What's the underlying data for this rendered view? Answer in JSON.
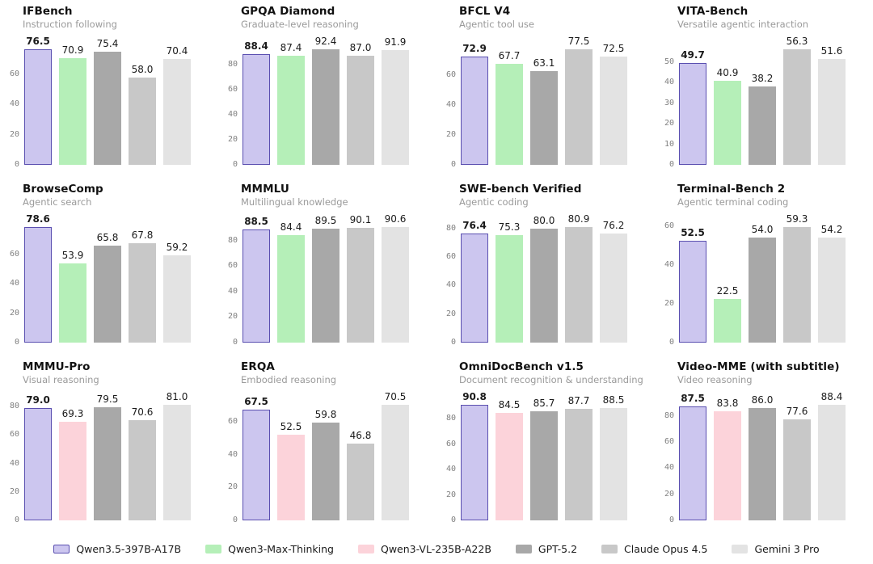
{
  "page": {
    "background": "#ffffff"
  },
  "colors": {
    "Qwen3.5-397B-A17B": {
      "fill": "#ccc6ef",
      "edge": "#5a4fb0"
    },
    "Qwen3-Max-Thinking": {
      "fill": "#b5efb8",
      "edge": "#b5efb8"
    },
    "Qwen3-VL-235B-A22B": {
      "fill": "#fcd3da",
      "edge": "#fcd3da"
    },
    "GPT-5.2": {
      "fill": "#a8a8a8",
      "edge": "#a8a8a8"
    },
    "Claude Opus 4.5": {
      "fill": "#c8c8c8",
      "edge": "#c8c8c8"
    },
    "Gemini 3 Pro": {
      "fill": "#e3e3e3",
      "edge": "#e3e3e3"
    }
  },
  "legend": {
    "items": [
      "Qwen3.5-397B-A17B",
      "Qwen3-Max-Thinking",
      "Qwen3-VL-235B-A22B",
      "GPT-5.2",
      "Claude Opus 4.5",
      "Gemini 3 Pro"
    ]
  },
  "chart_data": [
    {
      "type": "bar",
      "title": "IFBench",
      "subtitle": "Instruction following",
      "categories": [
        "Qwen3.5-397B-A17B",
        "Qwen3-Max-Thinking",
        "GPT-5.2",
        "Claude Opus 4.5",
        "Gemini 3 Pro"
      ],
      "values": [
        76.5,
        70.9,
        75.4,
        58.0,
        70.4
      ],
      "yticks": [
        0,
        20,
        40,
        60
      ],
      "ylim": [
        0,
        80.5
      ]
    },
    {
      "type": "bar",
      "title": "GPQA Diamond",
      "subtitle": "Graduate-level reasoning",
      "categories": [
        "Qwen3.5-397B-A17B",
        "Qwen3-Max-Thinking",
        "GPT-5.2",
        "Claude Opus 4.5",
        "Gemini 3 Pro"
      ],
      "values": [
        88.4,
        87.4,
        92.4,
        87.0,
        91.9
      ],
      "yticks": [
        0,
        20,
        40,
        60,
        80
      ],
      "ylim": [
        0,
        97.0
      ]
    },
    {
      "type": "bar",
      "title": "BFCL V4",
      "subtitle": "Agentic tool use",
      "categories": [
        "Qwen3.5-397B-A17B",
        "Qwen3-Max-Thinking",
        "GPT-5.2",
        "Claude Opus 4.5",
        "Gemini 3 Pro"
      ],
      "values": [
        72.9,
        67.7,
        63.1,
        77.5,
        72.5
      ],
      "yticks": [
        0,
        20,
        40,
        60
      ],
      "ylim": [
        0,
        81.4
      ]
    },
    {
      "type": "bar",
      "title": "VITA-Bench",
      "subtitle": "Versatile agentic interaction",
      "categories": [
        "Qwen3.5-397B-A17B",
        "Qwen3-Max-Thinking",
        "GPT-5.2",
        "Claude Opus 4.5",
        "Gemini 3 Pro"
      ],
      "values": [
        49.7,
        40.9,
        38.2,
        56.3,
        51.6
      ],
      "yticks": [
        0,
        10,
        20,
        30,
        40,
        50
      ],
      "ylim": [
        0,
        59.1
      ]
    },
    {
      "type": "bar",
      "title": "BrowseComp",
      "subtitle": "Agentic search",
      "categories": [
        "Qwen3.5-397B-A17B",
        "Qwen3-Max-Thinking",
        "GPT-5.2",
        "Claude Opus 4.5",
        "Gemini 3 Pro"
      ],
      "values": [
        78.6,
        53.9,
        65.8,
        67.8,
        59.2
      ],
      "yticks": [
        0,
        20,
        40,
        60
      ],
      "ylim": [
        0,
        82.5
      ]
    },
    {
      "type": "bar",
      "title": "MMMLU",
      "subtitle": "Multilingual knowledge",
      "categories": [
        "Qwen3.5-397B-A17B",
        "Qwen3-Max-Thinking",
        "GPT-5.2",
        "Claude Opus 4.5",
        "Gemini 3 Pro"
      ],
      "values": [
        88.5,
        84.4,
        89.5,
        90.1,
        90.6
      ],
      "yticks": [
        0,
        20,
        40,
        60,
        80
      ],
      "ylim": [
        0,
        95.1
      ]
    },
    {
      "type": "bar",
      "title": "SWE-bench Verified",
      "subtitle": "Agentic coding",
      "categories": [
        "Qwen3.5-397B-A17B",
        "Qwen3-Max-Thinking",
        "GPT-5.2",
        "Claude Opus 4.5",
        "Gemini 3 Pro"
      ],
      "values": [
        76.4,
        75.3,
        80.0,
        80.9,
        76.2
      ],
      "yticks": [
        0,
        20,
        40,
        60,
        80
      ],
      "ylim": [
        0,
        84.9
      ]
    },
    {
      "type": "bar",
      "title": "Terminal-Bench 2",
      "subtitle": "Agentic terminal coding",
      "categories": [
        "Qwen3.5-397B-A17B",
        "Qwen3-Max-Thinking",
        "GPT-5.2",
        "Claude Opus 4.5",
        "Gemini 3 Pro"
      ],
      "values": [
        52.5,
        22.5,
        54.0,
        59.3,
        54.2
      ],
      "yticks": [
        0,
        20,
        40,
        60
      ],
      "ylim": [
        0,
        62.3
      ]
    },
    {
      "type": "bar",
      "title": "MMMU-Pro",
      "subtitle": "Visual reasoning",
      "categories": [
        "Qwen3.5-397B-A17B",
        "Qwen3-VL-235B-A22B",
        "GPT-5.2",
        "Claude Opus 4.5",
        "Gemini 3 Pro"
      ],
      "values": [
        79.0,
        69.3,
        79.5,
        70.6,
        81.0
      ],
      "yticks": [
        0,
        20,
        40,
        60,
        80
      ],
      "ylim": [
        0,
        85.1
      ]
    },
    {
      "type": "bar",
      "title": "ERQA",
      "subtitle": "Embodied reasoning",
      "categories": [
        "Qwen3.5-397B-A17B",
        "Qwen3-VL-235B-A22B",
        "GPT-5.2",
        "Claude Opus 4.5",
        "Gemini 3 Pro"
      ],
      "values": [
        67.5,
        52.5,
        59.8,
        46.8,
        70.5
      ],
      "yticks": [
        0,
        20,
        40,
        60
      ],
      "ylim": [
        0,
        74.0
      ]
    },
    {
      "type": "bar",
      "title": "OmniDocBench v1.5",
      "subtitle": "Document recognition & understanding",
      "categories": [
        "Qwen3.5-397B-A17B",
        "Qwen3-VL-235B-A22B",
        "GPT-5.2",
        "Claude Opus 4.5",
        "Gemini 3 Pro"
      ],
      "values": [
        90.8,
        84.5,
        85.7,
        87.7,
        88.5
      ],
      "yticks": [
        0,
        20,
        40,
        60,
        80
      ],
      "ylim": [
        0,
        95.3
      ]
    },
    {
      "type": "bar",
      "title": "Video-MME (with subtitle)",
      "subtitle": "Video reasoning",
      "categories": [
        "Qwen3.5-397B-A17B",
        "Qwen3-VL-235B-A22B",
        "GPT-5.2",
        "Claude Opus 4.5",
        "Gemini 3 Pro"
      ],
      "values": [
        87.5,
        83.8,
        86.0,
        77.6,
        88.4
      ],
      "yticks": [
        0,
        20,
        40,
        60,
        80
      ],
      "ylim": [
        0,
        92.8
      ]
    }
  ]
}
